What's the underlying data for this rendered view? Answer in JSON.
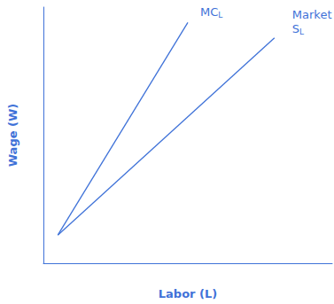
{
  "chart_data": {
    "type": "line",
    "x_label": "Labor (L)",
    "y_label": "Wage (W)",
    "xlim": [
      0,
      100
    ],
    "ylim": [
      0,
      100
    ],
    "xticks": [],
    "yticks": [],
    "tick_labels": false,
    "grid": false,
    "series": [
      {
        "name": "MCL",
        "color": "#3f72d8",
        "x": [
          5,
          50
        ],
        "values": [
          11,
          94
        ]
      },
      {
        "name": "Market SL",
        "color": "#3f72d8",
        "x": [
          5,
          80
        ],
        "values": [
          11,
          88
        ]
      }
    ]
  }
}
